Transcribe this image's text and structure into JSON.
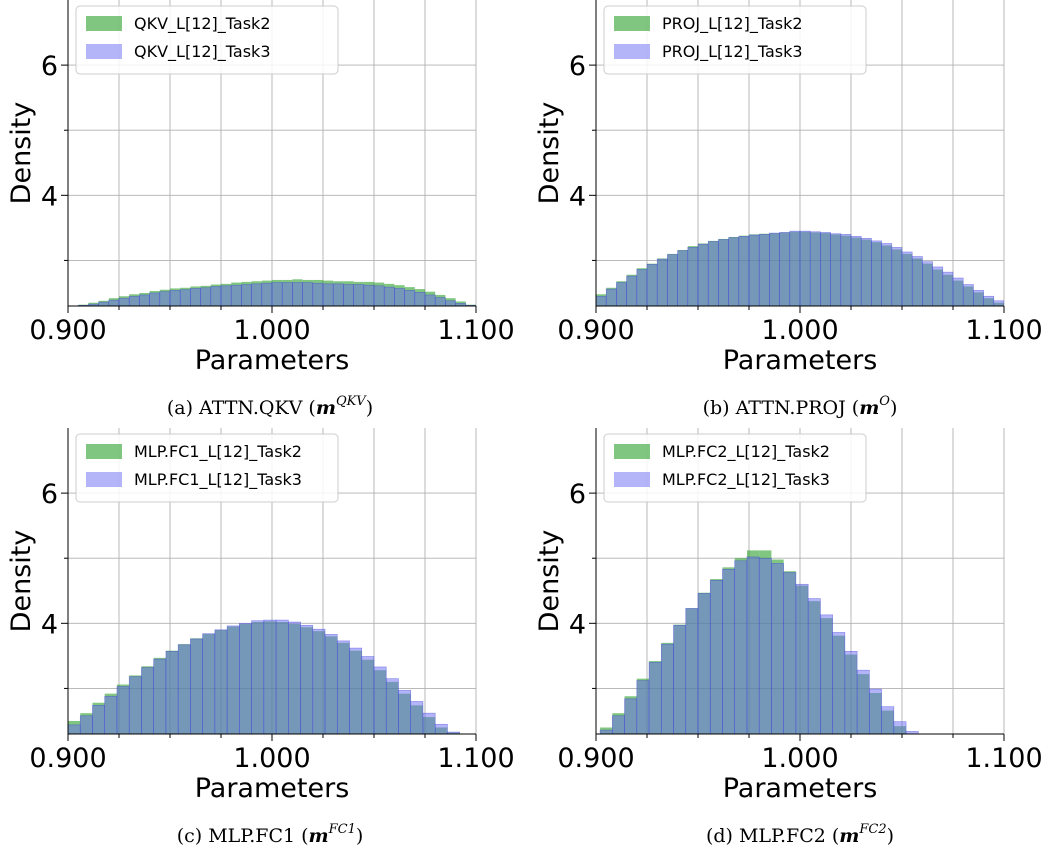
{
  "chart_data": [
    {
      "type": "bar",
      "caption": {
        "prefix": "(a) ATTN.QKV (",
        "math": "m",
        "sup": "QKV",
        "suffix": ")"
      },
      "xlabel": "Parameters",
      "ylabel": "Density",
      "xlim": [
        0.9,
        1.1
      ],
      "ylim": [
        2.3,
        7.0
      ],
      "xticks": [
        "0.900",
        "1.000",
        "1.100"
      ],
      "yticks": [
        "4",
        "6"
      ],
      "grid": true,
      "legend_position": "top-left",
      "bin_width": 0.005,
      "bin_start": 0.905,
      "series": [
        {
          "name": "QKV_L[12]_Task2",
          "color": "#2ca02c",
          "values": [
            2.32,
            2.35,
            2.38,
            2.42,
            2.45,
            2.48,
            2.5,
            2.53,
            2.55,
            2.57,
            2.58,
            2.6,
            2.61,
            2.63,
            2.64,
            2.66,
            2.67,
            2.68,
            2.69,
            2.7,
            2.7,
            2.71,
            2.7,
            2.7,
            2.69,
            2.68,
            2.68,
            2.67,
            2.67,
            2.66,
            2.64,
            2.62,
            2.59,
            2.56,
            2.52,
            2.47,
            2.42,
            2.37,
            2.32
          ]
        },
        {
          "name": "QKV_L[12]_Task3",
          "color": "#6a6af2",
          "values": [
            2.31,
            2.33,
            2.36,
            2.39,
            2.42,
            2.45,
            2.47,
            2.5,
            2.52,
            2.54,
            2.55,
            2.57,
            2.58,
            2.6,
            2.61,
            2.62,
            2.63,
            2.64,
            2.65,
            2.66,
            2.66,
            2.66,
            2.66,
            2.65,
            2.64,
            2.64,
            2.63,
            2.63,
            2.62,
            2.61,
            2.59,
            2.57,
            2.54,
            2.51,
            2.47,
            2.43,
            2.38,
            2.34,
            2.31
          ]
        }
      ]
    },
    {
      "type": "bar",
      "caption": {
        "prefix": "(b) ATTN.PROJ (",
        "math": "m",
        "sup": "O",
        "suffix": ")"
      },
      "xlabel": "Parameters",
      "ylabel": "Density",
      "xlim": [
        0.9,
        1.1
      ],
      "ylim": [
        2.3,
        7.0
      ],
      "xticks": [
        "0.900",
        "1.000",
        "1.100"
      ],
      "yticks": [
        "4",
        "6"
      ],
      "grid": true,
      "legend_position": "top-left",
      "bin_width": 0.005,
      "bin_start": 0.9,
      "series": [
        {
          "name": "PROJ_L[12]_Task2",
          "color": "#2ca02c",
          "values": [
            2.48,
            2.58,
            2.68,
            2.78,
            2.88,
            2.95,
            3.03,
            3.1,
            3.16,
            3.22,
            3.26,
            3.3,
            3.33,
            3.36,
            3.38,
            3.4,
            3.41,
            3.42,
            3.43,
            3.44,
            3.44,
            3.43,
            3.42,
            3.4,
            3.38,
            3.35,
            3.32,
            3.28,
            3.23,
            3.17,
            3.1,
            3.03,
            2.95,
            2.86,
            2.78,
            2.69,
            2.6,
            2.51,
            2.42,
            2.35
          ]
        },
        {
          "name": "PROJ_L[12]_Task3",
          "color": "#6a6af2",
          "values": [
            2.45,
            2.56,
            2.66,
            2.76,
            2.86,
            2.94,
            3.02,
            3.09,
            3.15,
            3.2,
            3.25,
            3.29,
            3.32,
            3.35,
            3.37,
            3.39,
            3.4,
            3.42,
            3.43,
            3.45,
            3.45,
            3.44,
            3.43,
            3.41,
            3.4,
            3.37,
            3.34,
            3.3,
            3.26,
            3.2,
            3.13,
            3.06,
            2.98,
            2.9,
            2.82,
            2.73,
            2.63,
            2.54,
            2.45,
            2.38
          ]
        }
      ]
    },
    {
      "type": "bar",
      "caption": {
        "prefix": "(c) MLP.FC1 (",
        "math": "m",
        "sup": "FC1",
        "suffix": ")"
      },
      "xlabel": "Parameters",
      "ylabel": "Density",
      "xlim": [
        0.9,
        1.1
      ],
      "ylim": [
        2.3,
        7.0
      ],
      "xticks": [
        "0.900",
        "1.000",
        "1.100"
      ],
      "yticks": [
        "4",
        "6"
      ],
      "grid": true,
      "legend_position": "top-left",
      "bin_width": 0.006,
      "bin_start": 0.9,
      "series": [
        {
          "name": "MLP.FC1_L[12]_Task2",
          "color": "#2ca02c",
          "values": [
            2.5,
            2.62,
            2.78,
            2.92,
            3.06,
            3.2,
            3.34,
            3.47,
            3.58,
            3.68,
            3.77,
            3.84,
            3.9,
            3.95,
            3.99,
            4.02,
            4.03,
            4.02,
            3.99,
            3.94,
            3.88,
            3.8,
            3.7,
            3.58,
            3.44,
            3.28,
            3.1,
            2.92,
            2.74,
            2.56,
            2.4,
            2.32
          ]
        },
        {
          "name": "MLP.FC1_L[12]_Task3",
          "color": "#6a6af2",
          "values": [
            2.44,
            2.58,
            2.74,
            2.88,
            3.03,
            3.18,
            3.32,
            3.45,
            3.57,
            3.67,
            3.76,
            3.84,
            3.9,
            3.96,
            4.0,
            4.04,
            4.05,
            4.05,
            4.02,
            3.97,
            3.91,
            3.83,
            3.73,
            3.62,
            3.49,
            3.33,
            3.15,
            2.97,
            2.8,
            2.62,
            2.45,
            2.33
          ]
        }
      ]
    },
    {
      "type": "bar",
      "caption": {
        "prefix": "(d) MLP.FC2 (",
        "math": "m",
        "sup": "FC2",
        "suffix": ")"
      },
      "xlabel": "Parameters",
      "ylabel": "Density",
      "xlim": [
        0.9,
        1.1
      ],
      "ylim": [
        2.3,
        7.0
      ],
      "xticks": [
        "0.900",
        "1.000",
        "1.100"
      ],
      "yticks": [
        "4",
        "6"
      ],
      "grid": true,
      "legend_position": "top-left",
      "bin_width": 0.006,
      "bin_start": 0.902,
      "series": [
        {
          "name": "MLP.FC2_L[12]_Task2",
          "color": "#2ca02c",
          "values": [
            2.4,
            2.62,
            2.88,
            3.15,
            3.42,
            3.7,
            3.98,
            4.23,
            4.47,
            4.68,
            4.86,
            5.0,
            5.12,
            5.12,
            4.98,
            4.8,
            4.58,
            4.34,
            4.08,
            3.81,
            3.52,
            3.22,
            2.93,
            2.66,
            2.42,
            2.3
          ]
        },
        {
          "name": "MLP.FC2_L[12]_Task3",
          "color": "#6a6af2",
          "values": [
            2.36,
            2.58,
            2.84,
            3.12,
            3.4,
            3.68,
            3.97,
            4.23,
            4.46,
            4.66,
            4.83,
            4.96,
            5.02,
            5.0,
            4.92,
            4.78,
            4.6,
            4.38,
            4.13,
            3.86,
            3.57,
            3.28,
            2.99,
            2.72,
            2.49,
            2.34
          ]
        }
      ]
    }
  ]
}
